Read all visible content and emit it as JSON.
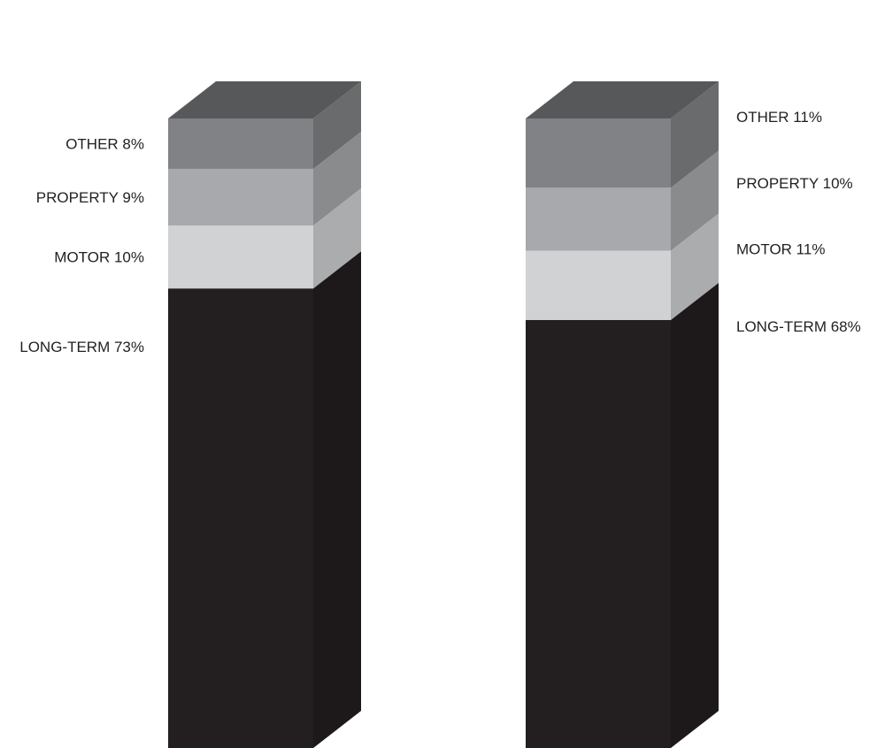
{
  "chart_data": {
    "type": "bar",
    "stacked": true,
    "style": "3d-stacked-column",
    "categories": [
      "",
      ""
    ],
    "series": [
      {
        "name": "LONG-TERM",
        "values": [
          73,
          68
        ],
        "labels": [
          "LONG-TERM  73%",
          "LONG-TERM 68%"
        ],
        "color": "#231f20"
      },
      {
        "name": "MOTOR",
        "values": [
          10,
          11
        ],
        "labels": [
          "MOTOR 10%",
          "MOTOR 11%"
        ],
        "color": "#d1d2d4"
      },
      {
        "name": "PROPERTY",
        "values": [
          9,
          10
        ],
        "labels": [
          "PROPERTY 9%",
          "PROPERTY 10%"
        ],
        "color": "#a7a9ac"
      },
      {
        "name": "OTHER",
        "values": [
          8,
          11
        ],
        "labels": [
          "OTHER 8%",
          "OTHER 11%"
        ],
        "color": "#808285"
      }
    ],
    "label_placement": [
      "left",
      "right"
    ],
    "title": "",
    "xlabel": "",
    "ylabel": "",
    "ylim": [
      0,
      100
    ],
    "grid": false,
    "legend": "none"
  }
}
